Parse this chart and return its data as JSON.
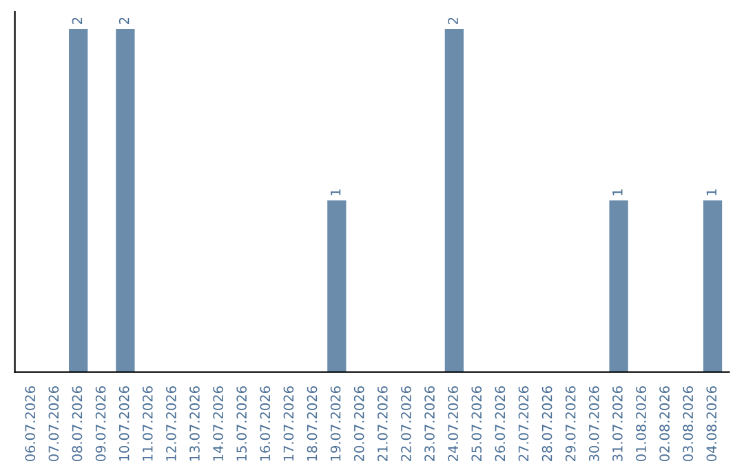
{
  "chart_data": {
    "type": "bar",
    "categories": [
      "06.07.2026",
      "07.07.2026",
      "08.07.2026",
      "09.07.2026",
      "10.07.2026",
      "11.07.2026",
      "12.07.2026",
      "13.07.2026",
      "14.07.2026",
      "15.07.2026",
      "16.07.2026",
      "17.07.2026",
      "18.07.2026",
      "19.07.2026",
      "20.07.2026",
      "21.07.2026",
      "22.07.2026",
      "23.07.2026",
      "24.07.2026",
      "25.07.2026",
      "26.07.2026",
      "27.07.2026",
      "28.07.2026",
      "29.07.2026",
      "30.07.2026",
      "31.07.2026",
      "01.08.2026",
      "02.08.2026",
      "03.08.2026",
      "04.08.2026"
    ],
    "values": [
      0,
      0,
      2,
      0,
      2,
      0,
      0,
      0,
      0,
      0,
      0,
      0,
      0,
      1,
      0,
      0,
      0,
      0,
      2,
      0,
      0,
      0,
      0,
      0,
      0,
      1,
      0,
      0,
      0,
      1
    ],
    "value_labels": [
      null,
      null,
      "2",
      null,
      "2",
      null,
      null,
      null,
      null,
      null,
      null,
      null,
      null,
      "1",
      null,
      null,
      null,
      null,
      "2",
      null,
      null,
      null,
      null,
      null,
      null,
      "1",
      null,
      null,
      null,
      "1"
    ],
    "color": "#6b8cab",
    "grid": false,
    "legend": false,
    "tick_labels": "x"
  }
}
